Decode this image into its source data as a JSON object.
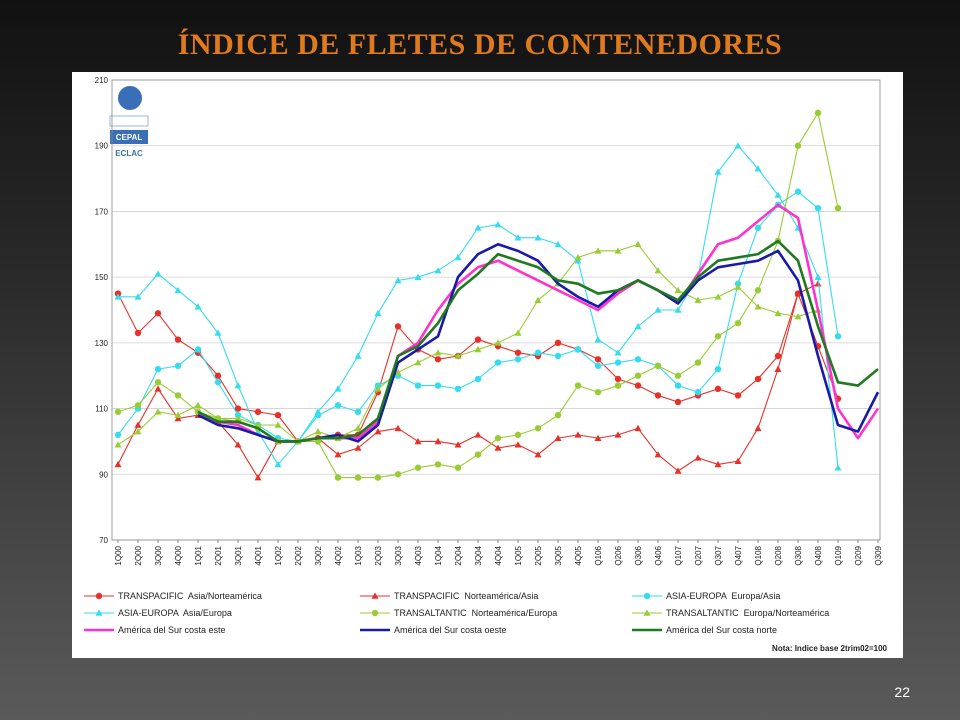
{
  "slide_title": "ÍNDICE DE FLETES DE CONTENEDORES",
  "page_number": "22",
  "logo": [
    "CEPAL",
    "ECLAC"
  ],
  "chart_data": {
    "type": "line",
    "note": "Nota: Indice base 2trim02=100",
    "categories": [
      "1Q00",
      "2Q00",
      "3Q00",
      "4Q00",
      "1Q01",
      "2Q01",
      "3Q01",
      "4Q01",
      "1Q02",
      "2Q02",
      "3Q02",
      "4Q02",
      "1Q03",
      "2Q03",
      "3Q03",
      "4Q03",
      "1Q04",
      "2Q04",
      "3Q04",
      "4Q04",
      "1Q05",
      "2Q05",
      "3Q05",
      "4Q05",
      "Q106",
      "Q206",
      "Q306",
      "Q406",
      "Q107",
      "Q207",
      "Q307",
      "Q407",
      "Q108",
      "Q208",
      "Q308",
      "Q408",
      "Q109",
      "Q209",
      "Q309"
    ],
    "ylim": [
      70,
      210
    ],
    "yticks": [
      70,
      90,
      110,
      130,
      150,
      170,
      190,
      210
    ],
    "grid": true,
    "series": [
      {
        "name": "TRANSPACIFIC  Asia/Norteamérica",
        "color": "#e8302a",
        "marker": "circle",
        "values": [
          145,
          133,
          139,
          131,
          127,
          120,
          110,
          109,
          108,
          100,
          101,
          102,
          102,
          115,
          135,
          128,
          125,
          126,
          131,
          129,
          127,
          126,
          130,
          128,
          125,
          119,
          117,
          114,
          112,
          114,
          116,
          114,
          119,
          126,
          145,
          129,
          113,
          null,
          null
        ]
      },
      {
        "name": "TRANSPACIFIC  Norteamérica/Asia",
        "color": "#e8302a",
        "marker": "triangle",
        "values": [
          93,
          105,
          116,
          107,
          108,
          106,
          99,
          89,
          100,
          100,
          101,
          96,
          98,
          103,
          104,
          100,
          100,
          99,
          102,
          98,
          99,
          96,
          101,
          102,
          101,
          102,
          104,
          96,
          91,
          95,
          93,
          94,
          104,
          122,
          145,
          148,
          null,
          null,
          null
        ]
      },
      {
        "name": "ASIA-EUROPA  Europa/Asia",
        "color": "#33ddee",
        "marker": "circle",
        "values": [
          102,
          110,
          122,
          123,
          128,
          118,
          108,
          105,
          101,
          100,
          108,
          111,
          109,
          117,
          120,
          117,
          117,
          116,
          119,
          124,
          125,
          127,
          126,
          128,
          123,
          124,
          125,
          123,
          117,
          115,
          122,
          148,
          165,
          172,
          176,
          171,
          132,
          null,
          null
        ]
      },
      {
        "name": "ASIA-EUROPA  Asia/Europa",
        "color": "#33ddee",
        "marker": "triangle",
        "values": [
          144,
          144,
          151,
          146,
          141,
          133,
          117,
          103,
          93,
          100,
          109,
          116,
          126,
          139,
          149,
          150,
          152,
          156,
          165,
          166,
          162,
          162,
          160,
          155,
          131,
          127,
          135,
          140,
          140,
          150,
          182,
          190,
          183,
          175,
          165,
          150,
          92,
          null,
          null
        ]
      },
      {
        "name": "TRANSALTANTIC  Norteamérica/Europa",
        "color": "#99cc33",
        "marker": "circle",
        "values": [
          109,
          111,
          118,
          114,
          109,
          107,
          106,
          104,
          100,
          100,
          100,
          89,
          89,
          89,
          90,
          92,
          93,
          92,
          96,
          101,
          102,
          104,
          108,
          117,
          115,
          117,
          120,
          123,
          120,
          124,
          132,
          136,
          146,
          161,
          190,
          200,
          171,
          null,
          null
        ]
      },
      {
        "name": "TRANSALTANTIC  Europa/Norteamérica",
        "color": "#99cc33",
        "marker": "triangle",
        "values": [
          99,
          103,
          109,
          108,
          111,
          107,
          107,
          105,
          105,
          100,
          103,
          101,
          104,
          116,
          121,
          124,
          127,
          126,
          128,
          130,
          133,
          143,
          148,
          156,
          158,
          158,
          160,
          152,
          146,
          143,
          144,
          147,
          141,
          139,
          138,
          140,
          null,
          null,
          null
        ]
      },
      {
        "name": "América del Sur costa este",
        "color": "#ff33cc",
        "marker": "none",
        "values": [
          null,
          null,
          null,
          null,
          108,
          106,
          105,
          102,
          100,
          100,
          101,
          101,
          101,
          106,
          126,
          130,
          140,
          148,
          153,
          155,
          152,
          149,
          146,
          143,
          140,
          145,
          149,
          146,
          142,
          151,
          160,
          162,
          167,
          172,
          168,
          140,
          110,
          101,
          110
        ]
      },
      {
        "name": "América del Sur costa oeste",
        "color": "#1a1aa8",
        "marker": "none",
        "values": [
          null,
          null,
          null,
          null,
          108,
          105,
          104,
          102,
          100,
          100,
          101,
          102,
          100,
          105,
          124,
          128,
          132,
          150,
          157,
          160,
          158,
          155,
          148,
          144,
          141,
          146,
          149,
          146,
          142,
          149,
          153,
          154,
          155,
          158,
          149,
          126,
          105,
          103,
          115
        ]
      },
      {
        "name": "América del Sur costa norte",
        "color": "#1f7a1f",
        "marker": "none",
        "values": [
          null,
          null,
          null,
          null,
          109,
          106,
          106,
          104,
          100,
          100,
          101,
          101,
          102,
          107,
          126,
          129,
          136,
          146,
          151,
          157,
          155,
          153,
          149,
          148,
          145,
          146,
          149,
          146,
          143,
          150,
          155,
          156,
          157,
          161,
          155,
          135,
          118,
          117,
          122
        ]
      }
    ]
  }
}
